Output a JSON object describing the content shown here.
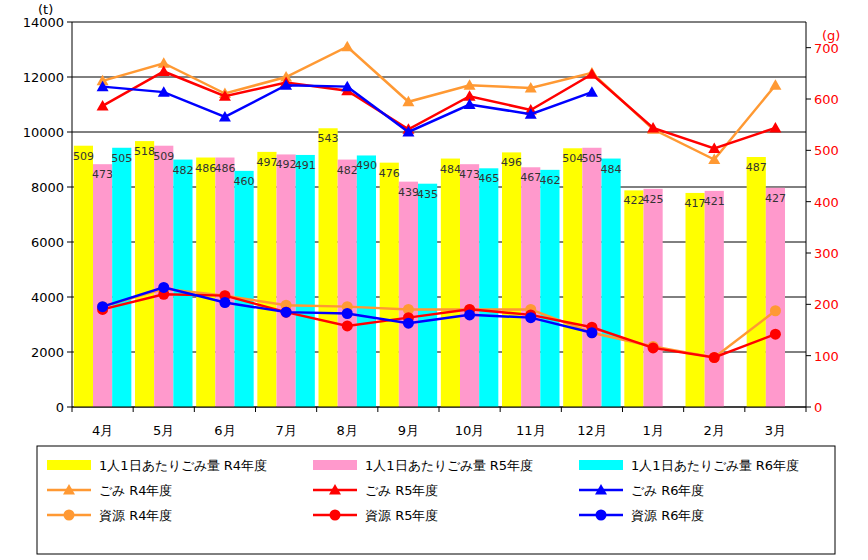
{
  "chart_data": {
    "type": "bar",
    "y_label": "(t)",
    "y2_label": "(g)",
    "categories": [
      "4月",
      "5月",
      "6月",
      "7月",
      "8月",
      "9月",
      "10月",
      "11月",
      "12月",
      "1月",
      "2月",
      "3月"
    ],
    "ylim": [
      0,
      14000
    ],
    "yticks": [
      0,
      2000,
      4000,
      6000,
      8000,
      10000,
      12000,
      14000
    ],
    "y2lim": [
      0,
      750
    ],
    "y2ticks": [
      0,
      100,
      200,
      300,
      400,
      500,
      600,
      700
    ],
    "grid": true,
    "legend": "bottom",
    "series": [
      {
        "name": "1人1日あたりごみ量 R4年度",
        "type": "bar",
        "axis": "y2",
        "color": "#ffff00",
        "data_labels": true,
        "values": [
          509,
          518,
          486,
          497,
          543,
          476,
          484,
          496,
          504,
          422,
          417,
          487
        ]
      },
      {
        "name": "1人1日あたりごみ量 R5年度",
        "type": "bar",
        "axis": "y2",
        "color": "#ff99cc",
        "data_labels": true,
        "values": [
          473,
          509,
          486,
          492,
          482,
          439,
          473,
          467,
          505,
          425,
          421,
          427
        ]
      },
      {
        "name": "1人1日あたりごみ量 R6年度",
        "type": "bar",
        "axis": "y2",
        "color": "#00ffff",
        "data_labels": true,
        "values": [
          505,
          482,
          460,
          491,
          490,
          435,
          465,
          462,
          484,
          null,
          null,
          null
        ]
      },
      {
        "name": "ごみ R4年度",
        "type": "line",
        "marker": "triangle",
        "color": "#ff9933",
        "values": [
          11860,
          12500,
          11400,
          12000,
          13100,
          11100,
          11700,
          11600,
          12150,
          10100,
          9000,
          11700
        ]
      },
      {
        "name": "ごみ R5年度",
        "type": "line",
        "marker": "triangle",
        "color": "#ff0000",
        "values": [
          10950,
          12200,
          11300,
          11800,
          11500,
          10100,
          11300,
          10800,
          12100,
          10150,
          9400,
          10150
        ]
      },
      {
        "name": "ごみ R6年度",
        "type": "line",
        "marker": "triangle",
        "color": "#0000ff",
        "values": [
          11650,
          11450,
          10550,
          11700,
          11650,
          10000,
          11000,
          10650,
          11450,
          null,
          null,
          null
        ]
      },
      {
        "name": "資源 R4年度",
        "type": "line",
        "marker": "circle",
        "color": "#ff9933",
        "values": [
          3650,
          4300,
          4050,
          3700,
          3650,
          3550,
          3550,
          3550,
          2700,
          2200,
          1800,
          3500
        ]
      },
      {
        "name": "資源 R5年度",
        "type": "line",
        "marker": "circle",
        "color": "#ff0000",
        "values": [
          3550,
          4100,
          4050,
          3450,
          2950,
          3250,
          3550,
          3350,
          2900,
          2150,
          1800,
          2650
        ]
      },
      {
        "name": "資源 R6年度",
        "type": "line",
        "marker": "circle",
        "color": "#0000ff",
        "values": [
          3650,
          4350,
          3800,
          3450,
          3400,
          3050,
          3350,
          3250,
          2700,
          null,
          null,
          null
        ]
      }
    ]
  }
}
